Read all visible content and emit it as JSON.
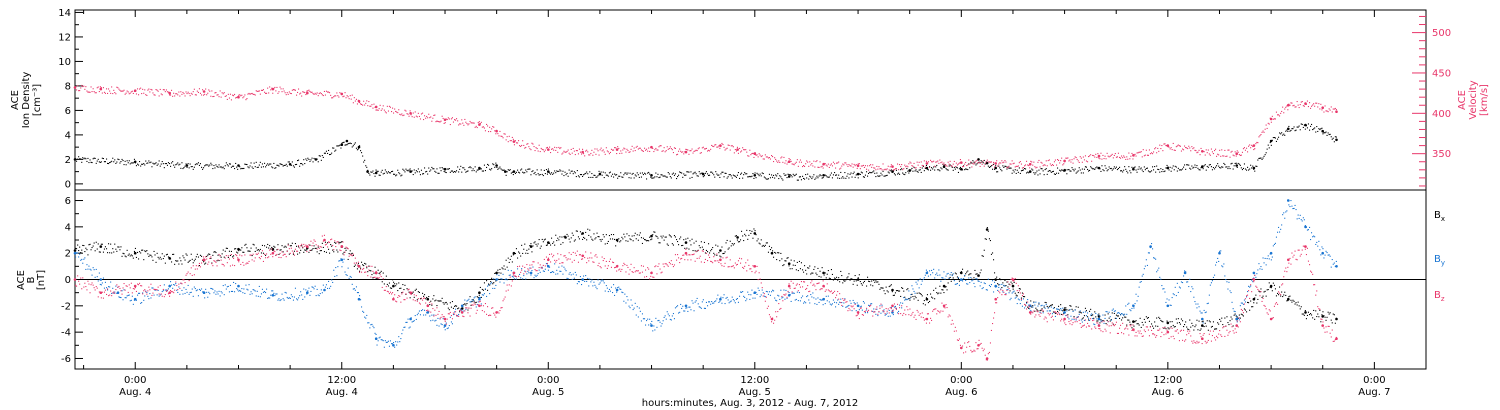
{
  "chart_data": {
    "type": "scatter",
    "title": "",
    "xlabel": "hours:minutes, Aug.  3, 2012 - Aug.  7, 2012",
    "colors": {
      "black": "#000000",
      "pink": "#e8366a",
      "blue": "#1874d2"
    },
    "x_range_hours": [
      -3.5,
      75
    ],
    "x_ticks": [
      {
        "hour": 0,
        "time": "0:00",
        "date": "Aug. 4"
      },
      {
        "hour": 12,
        "time": "12:00",
        "date": "Aug. 4"
      },
      {
        "hour": 24,
        "time": "0:00",
        "date": "Aug. 5"
      },
      {
        "hour": 36,
        "time": "12:00",
        "date": "Aug. 5"
      },
      {
        "hour": 48,
        "time": "0:00",
        "date": "Aug. 6"
      },
      {
        "hour": 60,
        "time": "12:00",
        "date": "Aug. 6"
      },
      {
        "hour": 72,
        "time": "0:00",
        "date": "Aug. 7"
      }
    ],
    "panels": [
      {
        "name": "density-velocity",
        "ylabel_lines": [
          "ACE",
          "Ion Density",
          "[cm⁻³]"
        ],
        "ylim": [
          -0.5,
          14.2
        ],
        "yticks": [
          0,
          2,
          4,
          6,
          8,
          10,
          12,
          14
        ],
        "y2label_lines": [
          "ACE",
          "Velocity",
          "[km/s]"
        ],
        "y2lim": [
          305,
          528
        ],
        "y2ticks": [
          350,
          400,
          450,
          500
        ],
        "y2_color": "#e8366a",
        "series": [
          {
            "key": "density",
            "axis": "left",
            "color": "#000000",
            "x": [
              -3.5,
              0,
              3,
              6,
              9,
              10.5,
              12,
              12.3,
              13,
              13.5,
              14,
              16,
              18,
              20,
              21,
              21.5,
              22,
              24,
              27,
              30,
              33,
              36,
              38,
              40,
              42,
              44,
              45,
              46,
              47,
              48,
              49,
              49.5,
              50,
              52,
              54,
              56,
              58,
              60,
              62,
              64,
              65,
              66,
              67,
              68,
              69,
              69.8
            ],
            "y": [
              2.0,
              1.8,
              1.5,
              1.5,
              1.6,
              2.0,
              3.2,
              3.5,
              3.0,
              1.0,
              0.9,
              1.0,
              1.2,
              1.3,
              1.5,
              1.0,
              1.0,
              1.0,
              0.8,
              0.7,
              0.8,
              0.7,
              0.6,
              0.7,
              0.8,
              1.0,
              1.1,
              1.3,
              1.4,
              1.2,
              2.0,
              1.7,
              1.3,
              1.0,
              1.1,
              1.3,
              1.2,
              1.3,
              1.4,
              1.5,
              1.3,
              3.5,
              4.5,
              4.8,
              4.3,
              3.6
            ]
          },
          {
            "key": "velocity",
            "axis": "right",
            "color": "#e8366a",
            "x": [
              -3.5,
              -2,
              0,
              2,
              4,
              6,
              8,
              10,
              12,
              13,
              14,
              16,
              18,
              20,
              21,
              22,
              24,
              26,
              28,
              30,
              32,
              34,
              35,
              36,
              38,
              40,
              42,
              44,
              46,
              48,
              50,
              52,
              54,
              56,
              58,
              60,
              62,
              64,
              65,
              66,
              67,
              68,
              69,
              69.8
            ],
            "y": [
              432,
              430,
              428,
              425,
              427,
              420,
              430,
              425,
              424,
              415,
              408,
              400,
              392,
              386,
              378,
              365,
              355,
              352,
              355,
              358,
              352,
              360,
              355,
              350,
              340,
              337,
              335,
              334,
              338,
              339,
              338,
              337,
              341,
              347,
              348,
              360,
              353,
              350,
              360,
              393,
              410,
              412,
              407,
              402
            ]
          }
        ]
      },
      {
        "name": "magnetic-field",
        "ylabel_lines": [
          "ACE",
          "B",
          "[nT]"
        ],
        "ylim": [
          -6.8,
          6.8
        ],
        "yticks": [
          -6,
          -4,
          -2,
          0,
          2,
          4,
          6
        ],
        "zero_line": true,
        "series": [
          {
            "key": "Bx",
            "name": "B",
            "subscript": "x",
            "color": "#000000",
            "x": [
              -3.5,
              -2,
              0,
              2,
              4,
              6,
              8,
              10,
              12,
              13,
              14,
              15,
              17,
              19,
              20,
              21,
              22,
              23,
              24,
              25,
              26,
              28,
              30,
              32,
              34,
              35,
              36,
              37,
              38,
              40,
              42,
              44,
              46,
              47,
              48,
              49,
              49.5,
              50,
              51,
              52,
              54,
              56,
              58,
              60,
              62,
              64,
              65,
              66,
              67,
              68,
              69,
              69.8
            ],
            "y": [
              2.2,
              2.5,
              2.0,
              1.6,
              1.5,
              2.3,
              2.3,
              2.4,
              2.5,
              1.0,
              0.5,
              -0.5,
              -1.5,
              -2.2,
              -1.0,
              0.5,
              2.0,
              2.5,
              2.8,
              3.2,
              3.5,
              3.0,
              3.3,
              2.8,
              2.2,
              3.2,
              3.5,
              2.0,
              1.2,
              0.5,
              0.0,
              -0.8,
              -1.5,
              -0.5,
              0.5,
              0.3,
              3.8,
              0.0,
              -0.5,
              -2.0,
              -2.3,
              -2.8,
              -3.2,
              -3.3,
              -3.5,
              -3.0,
              -1.5,
              -0.5,
              -1.5,
              -2.5,
              -2.8,
              -3.0
            ]
          },
          {
            "key": "By",
            "name": "B",
            "subscript": "y",
            "color": "#1874d2",
            "x": [
              -3.5,
              -2,
              -1,
              0,
              2,
              4,
              6,
              8,
              10,
              11,
              12,
              13,
              14,
              15,
              16,
              17,
              18,
              19,
              20,
              21,
              22,
              23,
              24,
              26,
              28,
              30,
              32,
              34,
              36,
              38,
              40,
              42,
              44,
              46,
              48,
              50,
              52,
              54,
              56,
              58,
              59,
              60,
              61,
              62,
              63,
              64,
              65,
              66,
              67,
              68,
              69,
              69.8
            ],
            "y": [
              2.0,
              0.0,
              -1.0,
              -1.5,
              -0.5,
              -1.0,
              -0.5,
              -1.2,
              -1.0,
              -0.8,
              1.5,
              -1.5,
              -4.5,
              -5.0,
              -3.0,
              -2.5,
              -3.5,
              -2.0,
              -1.5,
              0.0,
              0.5,
              0.5,
              1.0,
              0.0,
              -0.8,
              -3.5,
              -2.0,
              -1.5,
              -1.0,
              -1.2,
              -1.5,
              -2.0,
              -2.5,
              0.5,
              0.0,
              -0.5,
              -2.0,
              -2.5,
              -3.0,
              -2.0,
              2.5,
              -2.0,
              0.5,
              -3.0,
              2.0,
              -3.0,
              0.5,
              2.0,
              6.0,
              4.0,
              2.0,
              1.0
            ]
          },
          {
            "key": "Bz",
            "name": "B",
            "subscript": "z",
            "color": "#e8366a",
            "x": [
              -3.5,
              -2,
              0,
              2,
              4,
              6,
              8,
              10,
              11,
              12,
              13,
              14,
              15,
              16,
              17,
              18,
              19,
              20,
              21,
              22,
              24,
              26,
              28,
              30,
              32,
              34,
              36,
              37,
              38,
              40,
              42,
              44,
              46,
              47,
              48,
              49,
              49.5,
              50,
              51,
              52,
              54,
              56,
              58,
              60,
              62,
              64,
              65,
              66,
              67,
              68,
              69,
              69.8
            ],
            "y": [
              0.0,
              -1.0,
              -0.5,
              -1.0,
              1.5,
              1.5,
              2.0,
              2.5,
              3.0,
              2.5,
              1.0,
              0.5,
              -1.5,
              -1.0,
              -2.0,
              -3.0,
              -2.5,
              -2.0,
              -2.5,
              0.5,
              1.5,
              1.8,
              1.0,
              0.5,
              2.0,
              1.5,
              1.0,
              -3.0,
              -0.5,
              -0.5,
              -2.5,
              -2.0,
              -3.0,
              -2.0,
              -5.2,
              -5.0,
              -6.0,
              -1.5,
              0.0,
              -2.5,
              -3.0,
              -3.5,
              -3.8,
              -4.0,
              -4.5,
              -3.5,
              0.0,
              -3.0,
              1.5,
              2.5,
              -3.5,
              -4.5
            ]
          }
        ]
      }
    ]
  }
}
